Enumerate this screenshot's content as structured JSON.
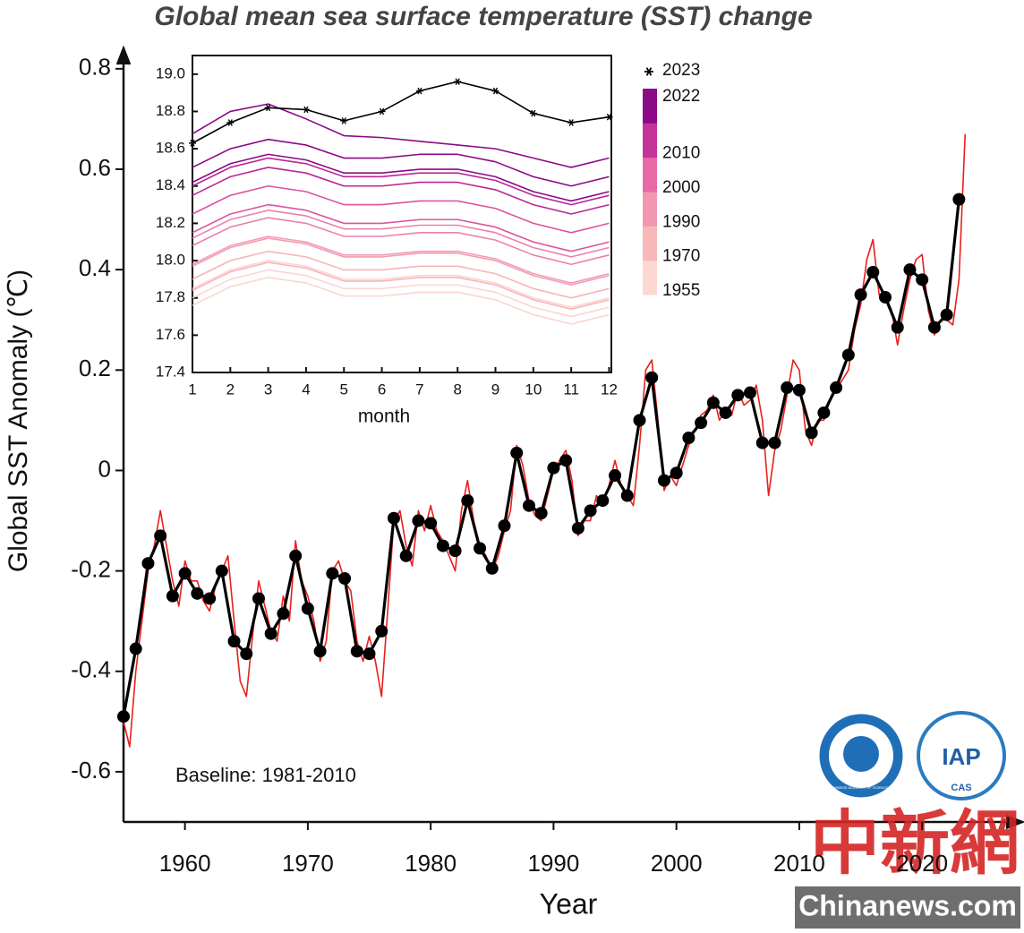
{
  "chart_data": [
    {
      "type": "line",
      "title": "Global mean sea surface temperature (SST) change",
      "x_label": "Year",
      "y_label": "Global SST Anomaly (℃)",
      "annotation": "Baseline: 1981-2010",
      "xlim": [
        1955,
        2028
      ],
      "ylim": [
        -0.7,
        0.83
      ],
      "xticks": [
        1960,
        1970,
        1980,
        1990,
        2000,
        2010,
        2020
      ],
      "yticks": [
        -0.6,
        -0.4,
        -0.2,
        0,
        0.2,
        0.4,
        0.6,
        0.8
      ],
      "grid": false,
      "series": [
        {
          "color": "#e8201c",
          "marker": "none",
          "x": [
            1955,
            1955.5,
            1956,
            1956.5,
            1957,
            1957.5,
            1958,
            1958.5,
            1959,
            1959.5,
            1960,
            1960.5,
            1961,
            1961.5,
            1962,
            1962.5,
            1963,
            1963.5,
            1964,
            1964.5,
            1965,
            1965.5,
            1966,
            1966.5,
            1967,
            1967.5,
            1968,
            1968.5,
            1969,
            1969.5,
            1970,
            1970.5,
            1971,
            1971.5,
            1972,
            1972.5,
            1973,
            1973.5,
            1974,
            1974.5,
            1975,
            1975.5,
            1976,
            1976.5,
            1977,
            1977.5,
            1978,
            1978.5,
            1979,
            1979.5,
            1980,
            1980.5,
            1981,
            1981.5,
            1982,
            1982.5,
            1983,
            1983.5,
            1984,
            1984.5,
            1985,
            1985.5,
            1986,
            1986.5,
            1987,
            1987.5,
            1988,
            1988.5,
            1989,
            1989.5,
            1990,
            1990.5,
            1991,
            1991.5,
            1992,
            1992.5,
            1993,
            1993.5,
            1994,
            1994.5,
            1995,
            1995.5,
            1996,
            1996.5,
            1997,
            1997.5,
            1998,
            1998.5,
            1999,
            1999.5,
            2000,
            2000.5,
            2001,
            2001.5,
            2002,
            2002.5,
            2003,
            2003.5,
            2004,
            2004.5,
            2005,
            2005.5,
            2006,
            2006.5,
            2007,
            2007.5,
            2008,
            2008.5,
            2009,
            2009.5,
            2010,
            2010.5,
            2011,
            2011.5,
            2012,
            2012.5,
            2013,
            2013.5,
            2014,
            2014.5,
            2015,
            2015.5,
            2016,
            2016.5,
            2017,
            2017.5,
            2018,
            2018.5,
            2019,
            2019.5,
            2020,
            2020.5,
            2021,
            2021.5,
            2022,
            2022.5,
            2023,
            2023.5
          ],
          "values": [
            -0.5,
            -0.55,
            -0.4,
            -0.3,
            -0.2,
            -0.15,
            -0.08,
            -0.15,
            -0.22,
            -0.27,
            -0.18,
            -0.22,
            -0.22,
            -0.26,
            -0.28,
            -0.23,
            -0.2,
            -0.17,
            -0.3,
            -0.42,
            -0.45,
            -0.33,
            -0.22,
            -0.27,
            -0.32,
            -0.34,
            -0.25,
            -0.3,
            -0.14,
            -0.22,
            -0.25,
            -0.3,
            -0.38,
            -0.34,
            -0.2,
            -0.18,
            -0.22,
            -0.24,
            -0.34,
            -0.38,
            -0.33,
            -0.38,
            -0.45,
            -0.28,
            -0.1,
            -0.08,
            -0.15,
            -0.19,
            -0.08,
            -0.12,
            -0.07,
            -0.12,
            -0.14,
            -0.17,
            -0.2,
            -0.08,
            -0.02,
            -0.1,
            -0.15,
            -0.17,
            -0.2,
            -0.17,
            -0.12,
            -0.08,
            0.05,
            0.01,
            -0.06,
            -0.09,
            -0.1,
            -0.05,
            0.0,
            0.02,
            0.04,
            -0.02,
            -0.13,
            -0.1,
            -0.1,
            -0.05,
            -0.07,
            -0.03,
            0.02,
            -0.03,
            -0.05,
            -0.07,
            0.05,
            0.2,
            0.22,
            0.1,
            -0.04,
            -0.01,
            -0.03,
            0.01,
            0.05,
            0.08,
            0.11,
            0.12,
            0.15,
            0.1,
            0.12,
            0.11,
            0.16,
            0.13,
            0.14,
            0.17,
            0.1,
            -0.05,
            0.04,
            0.08,
            0.15,
            0.22,
            0.2,
            0.08,
            0.05,
            0.1,
            0.1,
            0.14,
            0.16,
            0.18,
            0.2,
            0.28,
            0.33,
            0.42,
            0.46,
            0.35,
            0.35,
            0.32,
            0.25,
            0.32,
            0.38,
            0.42,
            0.43,
            0.32,
            0.27,
            0.3,
            0.3,
            0.29,
            0.38,
            0.67
          ]
        },
        {
          "color": "#000000",
          "marker": "circle",
          "x": [
            1955,
            1956,
            1957,
            1958,
            1959,
            1960,
            1961,
            1962,
            1963,
            1964,
            1965,
            1966,
            1967,
            1968,
            1969,
            1970,
            1971,
            1972,
            1973,
            1974,
            1975,
            1976,
            1977,
            1978,
            1979,
            1980,
            1981,
            1982,
            1983,
            1984,
            1985,
            1986,
            1987,
            1988,
            1989,
            1990,
            1991,
            1992,
            1993,
            1994,
            1995,
            1996,
            1997,
            1998,
            1999,
            2000,
            2001,
            2002,
            2003,
            2004,
            2005,
            2006,
            2007,
            2008,
            2009,
            2010,
            2011,
            2012,
            2013,
            2014,
            2015,
            2016,
            2017,
            2018,
            2019,
            2020,
            2021,
            2022,
            2023
          ],
          "values": [
            -0.49,
            -0.355,
            -0.185,
            -0.13,
            -0.25,
            -0.205,
            -0.245,
            -0.255,
            -0.2,
            -0.34,
            -0.365,
            -0.255,
            -0.325,
            -0.285,
            -0.17,
            -0.275,
            -0.36,
            -0.205,
            -0.215,
            -0.36,
            -0.365,
            -0.32,
            -0.095,
            -0.17,
            -0.1,
            -0.105,
            -0.15,
            -0.16,
            -0.06,
            -0.155,
            -0.195,
            -0.11,
            0.035,
            -0.07,
            -0.085,
            0.005,
            0.02,
            -0.115,
            -0.08,
            -0.06,
            -0.01,
            -0.05,
            0.1,
            0.185,
            -0.02,
            -0.005,
            0.065,
            0.095,
            0.135,
            0.115,
            0.15,
            0.155,
            0.055,
            0.055,
            0.165,
            0.16,
            0.075,
            0.115,
            0.165,
            0.23,
            0.35,
            0.395,
            0.345,
            0.285,
            0.4,
            0.38,
            0.285,
            0.31,
            0.54
          ]
        }
      ]
    },
    {
      "type": "line",
      "x_label": "month",
      "x": [
        1,
        2,
        3,
        4,
        5,
        6,
        7,
        8,
        9,
        10,
        11,
        12
      ],
      "xlim": [
        1,
        12.06
      ],
      "ylim": [
        17.4,
        19.1
      ],
      "xticks": [
        1,
        2,
        3,
        4,
        5,
        6,
        7,
        8,
        9,
        10,
        11,
        12
      ],
      "yticks": [
        17.4,
        17.6,
        17.8,
        {
          "value": 18,
          "label": "18.0"
        },
        18.2,
        18.4,
        18.6,
        18.8,
        {
          "value": 19,
          "label": "19.0"
        }
      ],
      "colorbar": {
        "labels": [
          1955,
          1970,
          1990,
          2000,
          2010,
          2022
        ],
        "colors": [
          "#fcd8d3",
          "#f8b8b9",
          "#f197b2",
          "#e76aa7",
          "#c5349a",
          "#8b0a87"
        ]
      },
      "series": [
        {
          "color": "#fcd5d0",
          "values": [
            17.76,
            17.86,
            17.91,
            17.88,
            17.81,
            17.81,
            17.83,
            17.83,
            17.79,
            17.71,
            17.66,
            17.71
          ]
        },
        {
          "color": "#fcd5d0",
          "values": [
            17.85,
            17.95,
            18.0,
            17.97,
            17.9,
            17.9,
            17.92,
            17.92,
            17.88,
            17.8,
            17.75,
            17.8
          ]
        },
        {
          "color": "#fcd5d0",
          "values": [
            17.8,
            17.9,
            17.95,
            17.92,
            17.85,
            17.85,
            17.87,
            17.87,
            17.83,
            17.75,
            17.7,
            17.75
          ]
        },
        {
          "color": "#f7b4b6",
          "values": [
            17.9,
            18.0,
            18.05,
            18.02,
            17.95,
            17.95,
            17.97,
            17.97,
            17.93,
            17.85,
            17.8,
            17.85
          ]
        },
        {
          "color": "#f7b4b6",
          "values": [
            17.84,
            17.94,
            17.99,
            17.96,
            17.89,
            17.89,
            17.91,
            17.91,
            17.87,
            17.79,
            17.74,
            17.79
          ]
        },
        {
          "color": "#f39bb0",
          "values": [
            17.97,
            18.07,
            18.12,
            18.09,
            18.02,
            18.02,
            18.04,
            18.04,
            18.0,
            17.92,
            17.87,
            17.92
          ]
        },
        {
          "color": "#f39bb0",
          "values": [
            17.98,
            18.08,
            18.13,
            18.1,
            18.03,
            18.03,
            18.05,
            18.05,
            18.01,
            17.93,
            17.88,
            17.93
          ]
        },
        {
          "color": "#ec80ac",
          "values": [
            18.08,
            18.18,
            18.23,
            18.2,
            18.13,
            18.13,
            18.15,
            18.15,
            18.11,
            18.03,
            17.98,
            18.03
          ]
        },
        {
          "color": "#ec80ac",
          "values": [
            18.12,
            18.22,
            18.27,
            18.24,
            18.17,
            18.17,
            18.19,
            18.19,
            18.15,
            18.07,
            18.02,
            18.07
          ]
        },
        {
          "color": "#db549f",
          "values": [
            18.15,
            18.25,
            18.3,
            18.27,
            18.2,
            18.2,
            18.22,
            18.22,
            18.18,
            18.1,
            18.05,
            18.1
          ]
        },
        {
          "color": "#db549f",
          "values": [
            18.25,
            18.35,
            18.4,
            18.37,
            18.3,
            18.3,
            18.32,
            18.32,
            18.28,
            18.2,
            18.15,
            18.2
          ]
        },
        {
          "color": "#b92893",
          "values": [
            18.35,
            18.45,
            18.5,
            18.47,
            18.4,
            18.4,
            18.42,
            18.42,
            18.38,
            18.3,
            18.25,
            18.3
          ]
        },
        {
          "color": "#b92893",
          "values": [
            18.4,
            18.5,
            18.55,
            18.52,
            18.45,
            18.45,
            18.47,
            18.47,
            18.43,
            18.35,
            18.3,
            18.35
          ]
        },
        {
          "color": "#8b0a87",
          "values": [
            18.68,
            18.8,
            18.84,
            18.76,
            18.67,
            18.66,
            18.64,
            18.62,
            18.6,
            18.55,
            18.5,
            18.55
          ]
        },
        {
          "color": "#8b0a87",
          "values": [
            18.5,
            18.6,
            18.65,
            18.62,
            18.55,
            18.55,
            18.57,
            18.57,
            18.53,
            18.45,
            18.4,
            18.45
          ]
        },
        {
          "color": "#8b0a87",
          "values": [
            18.42,
            18.52,
            18.57,
            18.54,
            18.47,
            18.47,
            18.49,
            18.49,
            18.45,
            18.37,
            18.32,
            18.37
          ]
        },
        {
          "name": "2023",
          "color": "#000000",
          "marker": "asterisk",
          "values": [
            18.63,
            18.74,
            18.82,
            18.81,
            18.75,
            18.8,
            18.91,
            18.96,
            18.91,
            18.79,
            18.74,
            18.77
          ]
        }
      ]
    }
  ],
  "logos": {
    "left": "CHINESE ACADEMY OF SCIENCES",
    "right_main": "IAP",
    "right_sub": "CAS"
  },
  "watermark": {
    "chinese": "中新網",
    "site": "Chinanews.com"
  }
}
